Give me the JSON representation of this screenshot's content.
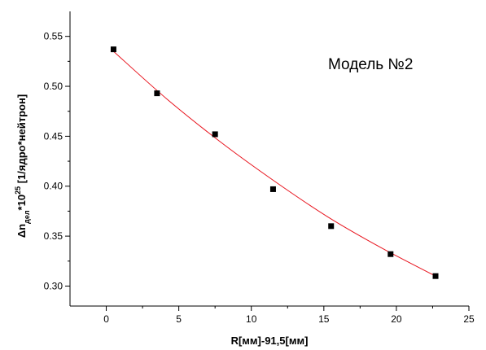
{
  "chart_data": {
    "type": "scatter",
    "title": "",
    "annotation": "Модель №2",
    "xlabel": "R[мм]-91,5[мм]",
    "ylabel": {
      "prefix": "Δn",
      "subscript": "дел",
      "middle": "*10",
      "superscript": "25",
      "suffix": " [1/ядро*нейтрон]"
    },
    "xlim": [
      -2.5,
      25
    ],
    "ylim": [
      0.28,
      0.575
    ],
    "x_ticks": [
      0,
      5,
      10,
      15,
      20,
      25
    ],
    "x_tick_labels": [
      "0",
      "5",
      "10",
      "15",
      "20",
      "25"
    ],
    "y_ticks": [
      0.3,
      0.35,
      0.4,
      0.45,
      0.5,
      0.55
    ],
    "y_tick_labels": [
      "0.30",
      "0.35",
      "0.40",
      "0.45",
      "0.50",
      "0.55"
    ],
    "grid": false,
    "series": [
      {
        "kind": "points",
        "color": "#000000",
        "marker": "square",
        "x": [
          0.5,
          3.5,
          7.5,
          11.5,
          15.5,
          19.6,
          22.7
        ],
        "y": [
          0.537,
          0.493,
          0.452,
          0.397,
          0.36,
          0.332,
          0.31
        ]
      },
      {
        "kind": "fit-line",
        "color": "#e8141e",
        "x": [
          0.5,
          4.2,
          7.9,
          11.6,
          15.3,
          19.0,
          22.7
        ],
        "y": [
          0.535,
          0.487,
          0.444,
          0.405,
          0.369,
          0.338,
          0.31
        ]
      }
    ]
  }
}
